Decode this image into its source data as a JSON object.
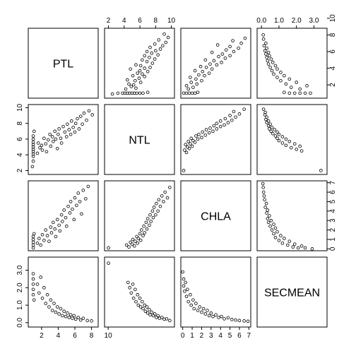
{
  "chart_data": {
    "type": "scatter",
    "variables": [
      "PTL",
      "NTL",
      "CHLA",
      "SECMEAN"
    ],
    "axis_ticks": {
      "PTL": [
        2,
        4,
        6,
        8,
        10
      ],
      "NTL": [
        2,
        4,
        6,
        8,
        10
      ],
      "CHLA": [
        0,
        1,
        2,
        3,
        4,
        5,
        6,
        7
      ],
      "SECMEAN": [
        0.0,
        1.0,
        2.0,
        3.0
      ]
    },
    "tick_labels": {
      "PTL": [
        "2",
        "4",
        "6",
        "8",
        "10"
      ],
      "NTL": [
        "2",
        "4",
        "6",
        "8",
        "10"
      ],
      "CHLA": [
        "0",
        "1",
        "2",
        "3",
        "4",
        "5",
        "6",
        "7"
      ],
      "SECMEAN": [
        "0.0",
        "1.0",
        "2.0",
        "3.0"
      ]
    },
    "axis_ranges": {
      "PTL": [
        0.4,
        8.8
      ],
      "NTL": [
        1.5,
        10.4
      ],
      "CHLA": [
        -0.2,
        7.2
      ],
      "SECMEAN": [
        -0.25,
        3.75
      ]
    },
    "series": [
      {
        "x_var": "PTL",
        "y_var": "NTL",
        "points": [
          [
            0.9,
            2.5
          ],
          [
            1.0,
            3.2
          ],
          [
            1.0,
            3.8
          ],
          [
            1.0,
            4.1
          ],
          [
            1.0,
            4.4
          ],
          [
            1.0,
            4.7
          ],
          [
            1.0,
            5.0
          ],
          [
            1.0,
            5.3
          ],
          [
            1.0,
            5.6
          ],
          [
            1.0,
            6.0
          ],
          [
            1.0,
            6.4
          ],
          [
            1.1,
            7.0
          ],
          [
            1.5,
            4.2
          ],
          [
            1.6,
            5.5
          ],
          [
            1.8,
            4.9
          ],
          [
            2.0,
            5.2
          ],
          [
            2.1,
            4.6
          ],
          [
            2.3,
            6.1
          ],
          [
            2.5,
            5.4
          ],
          [
            2.6,
            4.4
          ],
          [
            2.8,
            5.9
          ],
          [
            3.0,
            6.6
          ],
          [
            3.1,
            5.1
          ],
          [
            3.3,
            6.3
          ],
          [
            3.4,
            5.7
          ],
          [
            3.6,
            7.0
          ],
          [
            3.7,
            6.0
          ],
          [
            3.9,
            4.8
          ],
          [
            4.0,
            6.6
          ],
          [
            4.1,
            7.3
          ],
          [
            4.3,
            6.1
          ],
          [
            4.4,
            5.5
          ],
          [
            4.6,
            7.6
          ],
          [
            4.8,
            6.9
          ],
          [
            5.0,
            6.3
          ],
          [
            5.1,
            7.9
          ],
          [
            5.3,
            7.2
          ],
          [
            5.5,
            6.6
          ],
          [
            5.6,
            8.3
          ],
          [
            5.8,
            7.5
          ],
          [
            6.0,
            6.9
          ],
          [
            6.1,
            8.0
          ],
          [
            6.3,
            8.6
          ],
          [
            6.5,
            7.3
          ],
          [
            6.7,
            8.9
          ],
          [
            6.9,
            7.9
          ],
          [
            7.1,
            9.3
          ],
          [
            7.4,
            8.4
          ],
          [
            7.7,
            9.6
          ],
          [
            8.1,
            9.1
          ]
        ]
      },
      {
        "x_var": "PTL",
        "y_var": "CHLA",
        "points": [
          [
            1.0,
            0.1
          ],
          [
            1.0,
            0.4
          ],
          [
            1.0,
            0.7
          ],
          [
            1.0,
            1.0
          ],
          [
            1.0,
            1.3
          ],
          [
            1.1,
            1.6
          ],
          [
            1.5,
            0.6
          ],
          [
            1.7,
            1.1
          ],
          [
            1.9,
            0.4
          ],
          [
            2.1,
            1.5
          ],
          [
            2.3,
            0.9
          ],
          [
            2.5,
            2.0
          ],
          [
            2.7,
            1.4
          ],
          [
            2.9,
            0.8
          ],
          [
            3.1,
            2.3
          ],
          [
            3.2,
            1.7
          ],
          [
            3.4,
            2.8
          ],
          [
            3.6,
            2.1
          ],
          [
            3.7,
            1.3
          ],
          [
            3.9,
            3.1
          ],
          [
            4.1,
            2.5
          ],
          [
            4.2,
            1.9
          ],
          [
            4.4,
            3.6
          ],
          [
            4.5,
            2.9
          ],
          [
            4.7,
            4.1
          ],
          [
            4.9,
            3.3
          ],
          [
            5.0,
            2.4
          ],
          [
            5.2,
            4.5
          ],
          [
            5.4,
            3.8
          ],
          [
            5.5,
            5.0
          ],
          [
            5.7,
            4.2
          ],
          [
            5.9,
            3.1
          ],
          [
            6.0,
            5.4
          ],
          [
            6.2,
            4.6
          ],
          [
            6.4,
            5.9
          ],
          [
            6.6,
            5.0
          ],
          [
            6.8,
            3.7
          ],
          [
            7.0,
            6.2
          ],
          [
            7.3,
            5.3
          ],
          [
            7.6,
            6.6
          ]
        ]
      },
      {
        "x_var": "PTL",
        "y_var": "SECMEAN",
        "points": [
          [
            1.0,
            2.8
          ],
          [
            1.0,
            2.5
          ],
          [
            1.0,
            2.2
          ],
          [
            1.0,
            1.9
          ],
          [
            1.0,
            1.6
          ],
          [
            1.1,
            1.3
          ],
          [
            1.5,
            2.2
          ],
          [
            1.7,
            1.7
          ],
          [
            1.9,
            2.6
          ],
          [
            2.1,
            1.4
          ],
          [
            2.3,
            2.0
          ],
          [
            2.5,
            1.1
          ],
          [
            2.7,
            1.6
          ],
          [
            2.9,
            0.9
          ],
          [
            3.1,
            1.3
          ],
          [
            3.3,
            0.7
          ],
          [
            3.5,
            1.1
          ],
          [
            3.7,
            0.6
          ],
          [
            3.9,
            0.9
          ],
          [
            4.1,
            0.5
          ],
          [
            4.3,
            0.8
          ],
          [
            4.5,
            0.4
          ],
          [
            4.7,
            0.65
          ],
          [
            4.9,
            0.35
          ],
          [
            5.1,
            0.55
          ],
          [
            5.3,
            0.3
          ],
          [
            5.5,
            0.45
          ],
          [
            5.7,
            0.25
          ],
          [
            5.9,
            0.4
          ],
          [
            6.1,
            0.2
          ],
          [
            6.4,
            0.3
          ],
          [
            6.7,
            0.15
          ],
          [
            7.0,
            0.25
          ],
          [
            7.5,
            0.12
          ],
          [
            8.0,
            0.1
          ]
        ]
      },
      {
        "x_var": "NTL",
        "y_var": "CHLA",
        "points": [
          [
            2.0,
            0.1
          ],
          [
            4.3,
            0.4
          ],
          [
            4.6,
            0.2
          ],
          [
            4.8,
            0.7
          ],
          [
            5.0,
            0.5
          ],
          [
            5.1,
            1.0
          ],
          [
            5.3,
            0.3
          ],
          [
            5.4,
            0.8
          ],
          [
            5.6,
            1.3
          ],
          [
            5.7,
            0.6
          ],
          [
            5.8,
            1.1
          ],
          [
            6.0,
            1.6
          ],
          [
            6.1,
            0.9
          ],
          [
            6.2,
            2.0
          ],
          [
            6.4,
            1.4
          ],
          [
            6.5,
            2.4
          ],
          [
            6.6,
            1.7
          ],
          [
            6.8,
            2.8
          ],
          [
            6.9,
            2.1
          ],
          [
            7.0,
            3.2
          ],
          [
            7.2,
            2.5
          ],
          [
            7.3,
            3.6
          ],
          [
            7.4,
            2.9
          ],
          [
            7.6,
            4.0
          ],
          [
            7.7,
            3.3
          ],
          [
            7.8,
            4.4
          ],
          [
            8.0,
            3.6
          ],
          [
            8.1,
            4.8
          ],
          [
            8.3,
            4.0
          ],
          [
            8.4,
            5.2
          ],
          [
            8.6,
            4.5
          ],
          [
            8.8,
            5.6
          ],
          [
            9.0,
            5.0
          ],
          [
            9.2,
            6.0
          ],
          [
            9.5,
            5.4
          ],
          [
            9.8,
            6.5
          ]
        ]
      },
      {
        "x_var": "NTL",
        "y_var": "SECMEAN",
        "points": [
          [
            2.0,
            3.4
          ],
          [
            4.5,
            2.3
          ],
          [
            4.7,
            2.0
          ],
          [
            4.9,
            1.7
          ],
          [
            5.1,
            2.2
          ],
          [
            5.2,
            1.4
          ],
          [
            5.4,
            1.9
          ],
          [
            5.5,
            1.2
          ],
          [
            5.7,
            1.6
          ],
          [
            5.8,
            1.0
          ],
          [
            6.0,
            1.4
          ],
          [
            6.1,
            0.9
          ],
          [
            6.3,
            1.2
          ],
          [
            6.4,
            0.8
          ],
          [
            6.6,
            1.0
          ],
          [
            6.7,
            0.65
          ],
          [
            6.9,
            0.9
          ],
          [
            7.0,
            0.55
          ],
          [
            7.2,
            0.75
          ],
          [
            7.3,
            0.45
          ],
          [
            7.5,
            0.6
          ],
          [
            7.7,
            0.4
          ],
          [
            7.9,
            0.5
          ],
          [
            8.1,
            0.3
          ],
          [
            8.3,
            0.4
          ],
          [
            8.5,
            0.25
          ],
          [
            8.8,
            0.3
          ],
          [
            9.1,
            0.2
          ],
          [
            9.4,
            0.22
          ],
          [
            9.8,
            0.12
          ]
        ]
      },
      {
        "x_var": "CHLA",
        "y_var": "SECMEAN",
        "points": [
          [
            0.0,
            2.9
          ],
          [
            0.1,
            2.5
          ],
          [
            0.1,
            2.1
          ],
          [
            0.2,
            1.8
          ],
          [
            0.3,
            2.3
          ],
          [
            0.4,
            1.5
          ],
          [
            0.5,
            1.9
          ],
          [
            0.6,
            1.2
          ],
          [
            0.8,
            1.6
          ],
          [
            0.9,
            1.0
          ],
          [
            1.1,
            1.3
          ],
          [
            1.2,
            0.8
          ],
          [
            1.4,
            1.1
          ],
          [
            1.6,
            0.7
          ],
          [
            1.8,
            0.9
          ],
          [
            2.0,
            0.6
          ],
          [
            2.2,
            0.8
          ],
          [
            2.4,
            0.5
          ],
          [
            2.6,
            0.7
          ],
          [
            2.8,
            0.4
          ],
          [
            3.0,
            0.55
          ],
          [
            3.2,
            0.35
          ],
          [
            3.5,
            0.45
          ],
          [
            3.8,
            0.3
          ],
          [
            4.1,
            0.35
          ],
          [
            4.4,
            0.22
          ],
          [
            4.8,
            0.28
          ],
          [
            5.2,
            0.18
          ],
          [
            5.6,
            0.15
          ],
          [
            6.0,
            0.12
          ],
          [
            6.5,
            0.1
          ],
          [
            6.9,
            0.08
          ]
        ]
      }
    ]
  }
}
